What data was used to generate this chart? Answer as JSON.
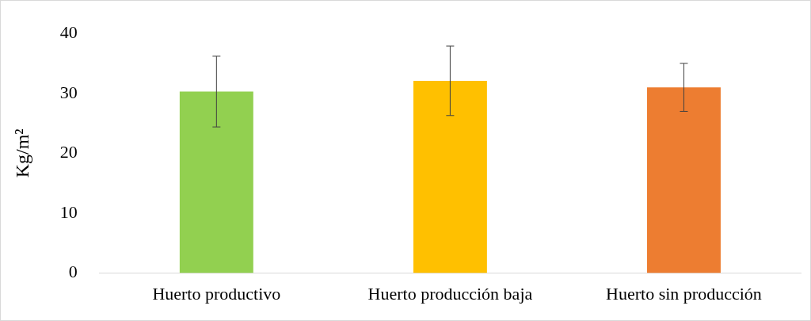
{
  "chart_data": {
    "type": "bar",
    "ylabel": "Kg/m²",
    "categories": [
      "Huerto productivo",
      "Huerto producción baja",
      "Huerto sin producción"
    ],
    "values": [
      30.3,
      32.1,
      31.0
    ],
    "colors": [
      "#92d050",
      "#ffc000",
      "#ed7d31"
    ],
    "errors": [
      5.9,
      5.8,
      4.0
    ],
    "ylim": [
      0,
      40
    ],
    "yticks": [
      0,
      10,
      20,
      30,
      40
    ],
    "grid": false,
    "legend": false
  }
}
